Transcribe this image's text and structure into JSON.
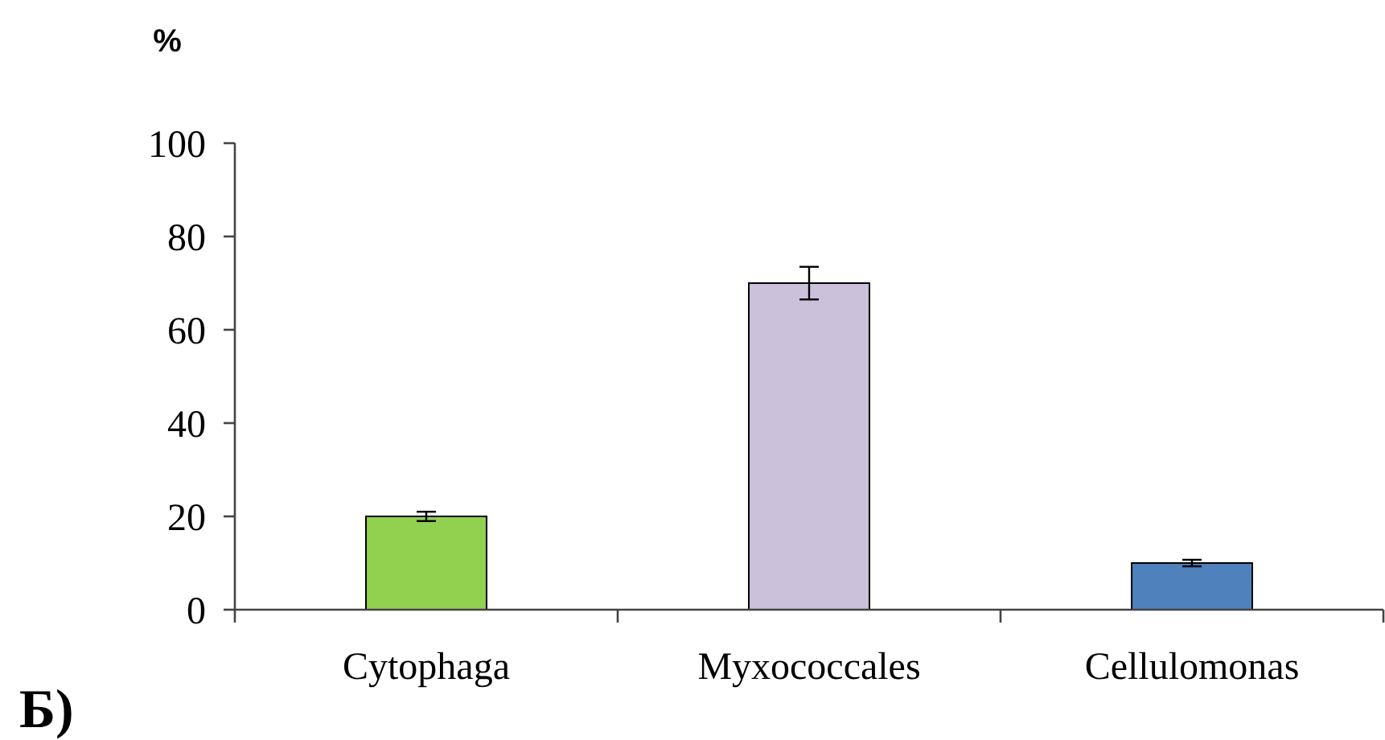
{
  "chart_data": {
    "type": "bar",
    "ylabel": "%",
    "annotations": [
      "Б)"
    ],
    "categories": [
      "Cytophaga",
      "Myxococcales",
      "Cellulomonas"
    ],
    "values": [
      20,
      70,
      10
    ],
    "colors": [
      "#92d050",
      "#ccc1da",
      "#4f81bd"
    ],
    "errors": [
      1,
      3.5,
      0.7
    ],
    "ylim": [
      0,
      100
    ],
    "yticks": [
      0,
      20,
      40,
      60,
      80,
      100
    ],
    "grid": false
  }
}
